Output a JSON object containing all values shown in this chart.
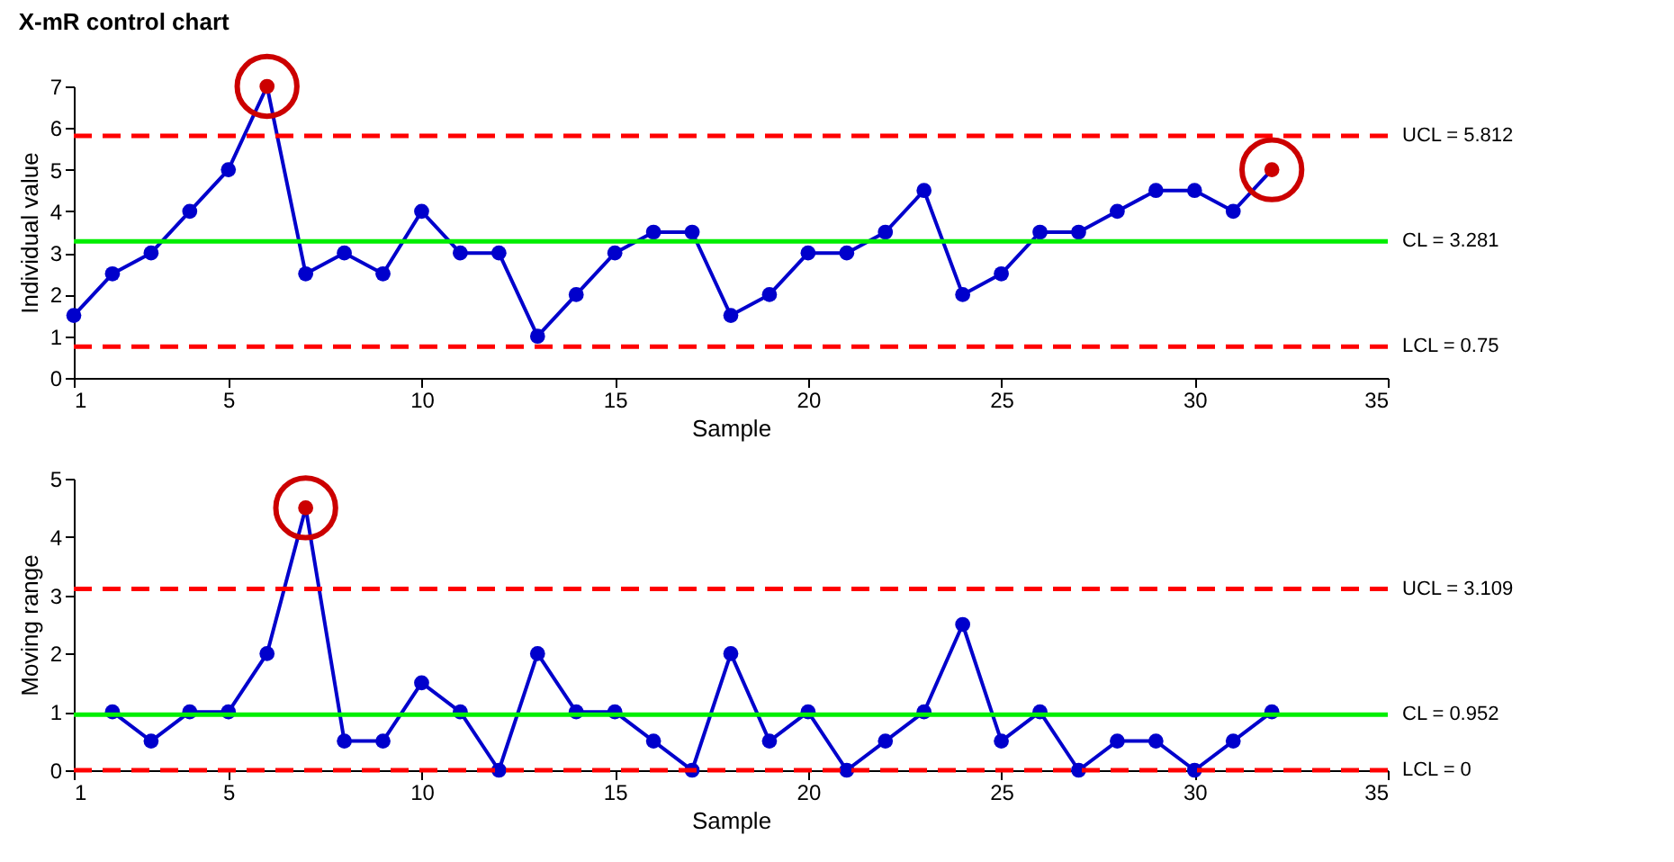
{
  "chart_data": [
    {
      "type": "line",
      "title": "X-mR control chart",
      "xlabel": "Sample",
      "ylabel": "Individual value",
      "marker": "circle",
      "line_style": "solid",
      "grid": false,
      "xlim": [
        1,
        35
      ],
      "xticks": [
        1,
        5,
        10,
        15,
        20,
        25,
        30,
        35
      ],
      "ylim": [
        0,
        7
      ],
      "yticks": [
        0,
        1,
        2,
        3,
        4,
        5,
        6,
        7
      ],
      "series": [
        {
          "color": "#0000cc",
          "x": [
            1,
            2,
            3,
            4,
            5,
            6,
            7,
            8,
            9,
            10,
            11,
            12,
            13,
            14,
            15,
            16,
            17,
            18,
            19,
            20,
            21,
            22,
            23,
            24,
            25,
            26,
            27,
            28,
            29,
            30,
            31,
            32
          ],
          "values": [
            1.5,
            2.5,
            3,
            4,
            5,
            7,
            2.5,
            3,
            2.5,
            4,
            3,
            3,
            1,
            2,
            3,
            3.5,
            3.5,
            1.5,
            2,
            3,
            3,
            3.5,
            4.5,
            2,
            2.5,
            3.5,
            3.5,
            4,
            4.5,
            4.5,
            4,
            5
          ],
          "colors": [
            "#0000cc",
            "#0000cc",
            "#0000cc",
            "#0000cc",
            "#0000cc",
            "#cc0000",
            "#0000cc",
            "#0000cc",
            "#0000cc",
            "#0000cc",
            "#0000cc",
            "#0000cc",
            "#0000cc",
            "#0000cc",
            "#0000cc",
            "#0000cc",
            "#0000cc",
            "#0000cc",
            "#0000cc",
            "#0000cc",
            "#0000cc",
            "#0000cc",
            "#0000cc",
            "#0000cc",
            "#0000cc",
            "#0000cc",
            "#0000cc",
            "#0000cc",
            "#0000cc",
            "#0000cc",
            "#0000cc",
            "#cc0000"
          ]
        }
      ],
      "ref_lines": [
        {
          "axis": "y",
          "value": 5.812,
          "label": "UCL = 5.812",
          "color": "#ff0000",
          "line_style": "dashed"
        },
        {
          "axis": "y",
          "value": 3.281,
          "label": "CL = 3.281",
          "color": "#00ee00",
          "line_style": "solid"
        },
        {
          "axis": "y",
          "value": 0.75,
          "label": "LCL = 0.75",
          "color": "#ff0000",
          "line_style": "dashed"
        }
      ]
    },
    {
      "type": "line",
      "xlabel": "Sample",
      "ylabel": "Moving range",
      "marker": "circle",
      "line_style": "solid",
      "grid": false,
      "xlim": [
        1,
        35
      ],
      "xticks": [
        1,
        5,
        10,
        15,
        20,
        25,
        30,
        35
      ],
      "ylim": [
        0,
        5
      ],
      "yticks": [
        0,
        1,
        2,
        3,
        4,
        5
      ],
      "series": [
        {
          "color": "#0000cc",
          "x": [
            2,
            3,
            4,
            5,
            6,
            7,
            8,
            9,
            10,
            11,
            12,
            13,
            14,
            15,
            16,
            17,
            18,
            19,
            20,
            21,
            22,
            23,
            24,
            25,
            26,
            27,
            28,
            29,
            30,
            31,
            32
          ],
          "values": [
            1,
            0.5,
            1,
            1,
            2,
            4.5,
            0.5,
            0.5,
            1.5,
            1,
            0,
            2,
            1,
            1,
            0.5,
            0,
            2,
            0.5,
            1,
            0,
            0.5,
            1,
            2.5,
            0.5,
            1,
            0,
            0.5,
            0.5,
            0,
            0.5,
            1
          ],
          "colors": [
            "#0000cc",
            "#0000cc",
            "#0000cc",
            "#0000cc",
            "#0000cc",
            "#cc0000",
            "#0000cc",
            "#0000cc",
            "#0000cc",
            "#0000cc",
            "#0000cc",
            "#0000cc",
            "#0000cc",
            "#0000cc",
            "#0000cc",
            "#0000cc",
            "#0000cc",
            "#0000cc",
            "#0000cc",
            "#0000cc",
            "#0000cc",
            "#0000cc",
            "#0000cc",
            "#0000cc",
            "#0000cc",
            "#0000cc",
            "#0000cc",
            "#0000cc",
            "#0000cc",
            "#0000cc",
            "#0000cc"
          ]
        }
      ],
      "ref_lines": [
        {
          "axis": "y",
          "value": 3.109,
          "label": "UCL = 3.109",
          "color": "#ff0000",
          "line_style": "dashed"
        },
        {
          "axis": "y",
          "value": 0.952,
          "label": "CL = 0.952",
          "color": "#00ee00",
          "line_style": "solid"
        },
        {
          "axis": "y",
          "value": 0,
          "label": "LCL = 0",
          "color": "#ff0000",
          "line_style": "dashed"
        }
      ]
    }
  ]
}
